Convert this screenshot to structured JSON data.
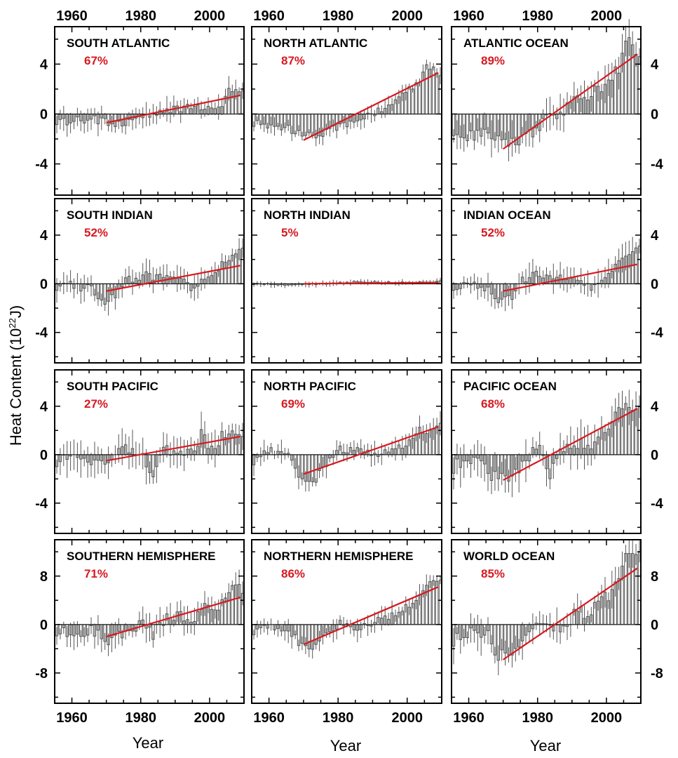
{
  "ylabel": "Heat Content (10",
  "ylabel_sup": "22",
  "ylabel_unit": "J)",
  "xlabel": "Year",
  "trend_color": "#d71920",
  "bar_color": "#555555",
  "x_ticks": [
    "1960",
    "1980",
    "2000"
  ],
  "chart_data": [
    {
      "type": "bar",
      "title": "SOUTH ATLANTIC",
      "percent": "67%",
      "row": 0,
      "col": 0,
      "ylim": [
        -6.5,
        7
      ],
      "yticks": [
        "4",
        "0",
        "-4"
      ],
      "ytick_values": [
        4,
        0,
        -4
      ],
      "xlim": [
        1955,
        2010
      ],
      "trend": {
        "x": [
          1970,
          2009
        ],
        "y": [
          -0.7,
          1.5
        ]
      },
      "anchors": [
        [
          1955,
          -0.5
        ],
        [
          1960,
          -0.6
        ],
        [
          1965,
          -0.4
        ],
        [
          1970,
          -0.8
        ],
        [
          1975,
          -0.6
        ],
        [
          1980,
          -0.3
        ],
        [
          1985,
          0.2
        ],
        [
          1990,
          0.5
        ],
        [
          1995,
          0.4
        ],
        [
          2000,
          0.7
        ],
        [
          2003,
          0.9
        ],
        [
          2005,
          2.2
        ],
        [
          2007,
          1.8
        ],
        [
          2009,
          1.9
        ]
      ],
      "noise": 0.35,
      "err": 0.8
    },
    {
      "type": "bar",
      "title": "NORTH ATLANTIC",
      "percent": "87%",
      "row": 0,
      "col": 1,
      "ylim": [
        -6.5,
        7
      ],
      "yticks": [
        "4",
        "0",
        "-4"
      ],
      "ytick_values": [
        4,
        0,
        -4
      ],
      "xlim": [
        1955,
        2010
      ],
      "trend": {
        "x": [
          1970,
          2009
        ],
        "y": [
          -2.1,
          3.3
        ]
      },
      "anchors": [
        [
          1955,
          -0.7
        ],
        [
          1960,
          -1.0
        ],
        [
          1965,
          -1.2
        ],
        [
          1970,
          -1.8
        ],
        [
          1975,
          -1.5
        ],
        [
          1980,
          -1.0
        ],
        [
          1985,
          -0.5
        ],
        [
          1990,
          0.0
        ],
        [
          1995,
          1.0
        ],
        [
          2000,
          2.0
        ],
        [
          2003,
          2.8
        ],
        [
          2005,
          4.0
        ],
        [
          2007,
          3.7
        ],
        [
          2009,
          3.2
        ]
      ],
      "noise": 0.3,
      "err": 0.6
    },
    {
      "type": "bar",
      "title": "ATLANTIC OCEAN",
      "percent": "89%",
      "row": 0,
      "col": 2,
      "ylim": [
        -6.5,
        7
      ],
      "yticks": [
        "4",
        "0",
        "-4"
      ],
      "ytick_values": [
        4,
        0,
        -4
      ],
      "xlim": [
        1955,
        2010
      ],
      "trend": {
        "x": [
          1970,
          2009
        ],
        "y": [
          -2.8,
          4.8
        ]
      },
      "anchors": [
        [
          1955,
          -1.2
        ],
        [
          1960,
          -1.8
        ],
        [
          1965,
          -1.5
        ],
        [
          1970,
          -2.5
        ],
        [
          1975,
          -2.2
        ],
        [
          1980,
          -1.0
        ],
        [
          1985,
          0.0
        ],
        [
          1990,
          1.0
        ],
        [
          1995,
          1.5
        ],
        [
          2000,
          2.8
        ],
        [
          2003,
          3.8
        ],
        [
          2005,
          5.8
        ],
        [
          2007,
          5.5
        ],
        [
          2009,
          5.0
        ]
      ],
      "noise": 0.55,
      "err": 1.2
    },
    {
      "type": "bar",
      "title": "SOUTH INDIAN",
      "percent": "52%",
      "row": 1,
      "col": 0,
      "ylim": [
        -6.5,
        7
      ],
      "yticks": [
        "4",
        "0",
        "-4"
      ],
      "ytick_values": [
        4,
        0,
        -4
      ],
      "xlim": [
        1955,
        2010
      ],
      "trend": {
        "x": [
          1970,
          2009
        ],
        "y": [
          -0.6,
          1.5
        ]
      },
      "anchors": [
        [
          1955,
          -0.2
        ],
        [
          1960,
          -0.1
        ],
        [
          1965,
          -0.5
        ],
        [
          1968,
          -1.5
        ],
        [
          1972,
          -1.0
        ],
        [
          1975,
          0.2
        ],
        [
          1980,
          0.7
        ],
        [
          1985,
          0.5
        ],
        [
          1990,
          0.5
        ],
        [
          1995,
          -0.5
        ],
        [
          2000,
          1.0
        ],
        [
          2005,
          1.8
        ],
        [
          2007,
          2.5
        ],
        [
          2009,
          2.6
        ]
      ],
      "noise": 0.35,
      "err": 0.9
    },
    {
      "type": "bar",
      "title": "NORTH INDIAN",
      "percent": "5%",
      "row": 1,
      "col": 1,
      "ylim": [
        -6.5,
        7
      ],
      "yticks": [
        "4",
        "0",
        "-4"
      ],
      "ytick_values": [
        4,
        0,
        -4
      ],
      "xlim": [
        1955,
        2010
      ],
      "trend": {
        "x": [
          1970,
          2009
        ],
        "y": [
          0.0,
          0.1
        ]
      },
      "anchors": [
        [
          1955,
          0.0
        ],
        [
          1965,
          -0.1
        ],
        [
          1975,
          0.0
        ],
        [
          1985,
          0.15
        ],
        [
          1995,
          0.1
        ],
        [
          2005,
          0.1
        ],
        [
          2009,
          0.2
        ]
      ],
      "noise": 0.07,
      "err": 0.2
    },
    {
      "type": "bar",
      "title": "INDIAN OCEAN",
      "percent": "52%",
      "row": 1,
      "col": 2,
      "ylim": [
        -6.5,
        7
      ],
      "yticks": [
        "4",
        "0",
        "-4"
      ],
      "ytick_values": [
        4,
        0,
        -4
      ],
      "xlim": [
        1955,
        2010
      ],
      "trend": {
        "x": [
          1970,
          2009
        ],
        "y": [
          -0.6,
          1.6
        ]
      },
      "anchors": [
        [
          1955,
          -0.2
        ],
        [
          1960,
          -0.1
        ],
        [
          1965,
          -0.6
        ],
        [
          1968,
          -1.6
        ],
        [
          1972,
          -1.0
        ],
        [
          1975,
          0.3
        ],
        [
          1980,
          0.8
        ],
        [
          1985,
          0.6
        ],
        [
          1990,
          0.5
        ],
        [
          1995,
          -0.4
        ],
        [
          2000,
          1.0
        ],
        [
          2005,
          2.0
        ],
        [
          2007,
          2.8
        ],
        [
          2009,
          3.0
        ]
      ],
      "noise": 0.35,
      "err": 1.0
    },
    {
      "type": "bar",
      "title": "SOUTH PACIFIC",
      "percent": "27%",
      "row": 2,
      "col": 0,
      "ylim": [
        -6.5,
        7
      ],
      "yticks": [
        "4",
        "0",
        "-4"
      ],
      "ytick_values": [
        4,
        0,
        -4
      ],
      "xlim": [
        1955,
        2010
      ],
      "trend": {
        "x": [
          1970,
          2009
        ],
        "y": [
          -0.5,
          1.5
        ]
      },
      "anchors": [
        [
          1955,
          -0.5
        ],
        [
          1960,
          -0.2
        ],
        [
          1965,
          -0.8
        ],
        [
          1970,
          -0.3
        ],
        [
          1975,
          0.5
        ],
        [
          1980,
          0.0
        ],
        [
          1983,
          -2.0
        ],
        [
          1985,
          0.3
        ],
        [
          1990,
          0.5
        ],
        [
          1995,
          0.2
        ],
        [
          1997,
          2.0
        ],
        [
          2000,
          0.3
        ],
        [
          2003,
          1.5
        ],
        [
          2005,
          2.2
        ],
        [
          2007,
          2.0
        ],
        [
          2009,
          1.5
        ]
      ],
      "noise": 0.5,
      "err": 1.2
    },
    {
      "type": "bar",
      "title": "NORTH PACIFIC",
      "percent": "69%",
      "row": 2,
      "col": 1,
      "ylim": [
        -6.5,
        7
      ],
      "yticks": [
        "4",
        "0",
        "-4"
      ],
      "ytick_values": [
        4,
        0,
        -4
      ],
      "xlim": [
        1955,
        2010
      ],
      "trend": {
        "x": [
          1970,
          2009
        ],
        "y": [
          -1.6,
          2.3
        ]
      },
      "anchors": [
        [
          1955,
          -0.5
        ],
        [
          1960,
          0.3
        ],
        [
          1965,
          -0.2
        ],
        [
          1968,
          -1.8
        ],
        [
          1972,
          -2.5
        ],
        [
          1975,
          -1.2
        ],
        [
          1980,
          0.4
        ],
        [
          1985,
          0.3
        ],
        [
          1990,
          0.0
        ],
        [
          1995,
          0.2
        ],
        [
          2000,
          1.2
        ],
        [
          2003,
          2.0
        ],
        [
          2005,
          2.0
        ],
        [
          2007,
          2.4
        ],
        [
          2009,
          2.7
        ]
      ],
      "noise": 0.35,
      "err": 0.8
    },
    {
      "type": "bar",
      "title": "PACIFIC OCEAN",
      "percent": "68%",
      "row": 2,
      "col": 2,
      "ylim": [
        -6.5,
        7
      ],
      "yticks": [
        "4",
        "0",
        "-4"
      ],
      "ytick_values": [
        4,
        0,
        -4
      ],
      "xlim": [
        1955,
        2010
      ],
      "trend": {
        "x": [
          1970,
          2009
        ],
        "y": [
          -2.1,
          3.8
        ]
      },
      "anchors": [
        [
          1955,
          -1.0
        ],
        [
          1960,
          -0.3
        ],
        [
          1965,
          -1.5
        ],
        [
          1970,
          -2.0
        ],
        [
          1975,
          -0.8
        ],
        [
          1980,
          1.0
        ],
        [
          1983,
          -1.5
        ],
        [
          1987,
          0.5
        ],
        [
          1990,
          1.0
        ],
        [
          1995,
          0.8
        ],
        [
          1997,
          2.0
        ],
        [
          2000,
          2.5
        ],
        [
          2003,
          3.5
        ],
        [
          2005,
          4.5
        ],
        [
          2007,
          4.2
        ],
        [
          2009,
          4.3
        ]
      ],
      "noise": 0.55,
      "err": 1.4
    },
    {
      "type": "bar",
      "title": "SOUTHERN HEMISPHERE",
      "percent": "71%",
      "row": 3,
      "col": 0,
      "ylim": [
        -13,
        14
      ],
      "yticks": [
        "8",
        "0",
        "-8"
      ],
      "ytick_values": [
        8,
        0,
        -8
      ],
      "xlim": [
        1955,
        2010
      ],
      "trend": {
        "x": [
          1970,
          2009
        ],
        "y": [
          -2.0,
          4.5
        ]
      },
      "anchors": [
        [
          1955,
          -1.0
        ],
        [
          1960,
          -1.5
        ],
        [
          1965,
          -1.0
        ],
        [
          1970,
          -2.5
        ],
        [
          1975,
          -1.5
        ],
        [
          1980,
          0.5
        ],
        [
          1983,
          -2.0
        ],
        [
          1985,
          0.5
        ],
        [
          1990,
          1.5
        ],
        [
          1995,
          0.5
        ],
        [
          1997,
          3.0
        ],
        [
          2000,
          2.0
        ],
        [
          2003,
          3.5
        ],
        [
          2005,
          5.5
        ],
        [
          2007,
          5.8
        ],
        [
          2009,
          6.0
        ]
      ],
      "noise": 0.9,
      "err": 2.0
    },
    {
      "type": "bar",
      "title": "NORTHERN HEMISPHERE",
      "percent": "86%",
      "row": 3,
      "col": 1,
      "ylim": [
        -13,
        14
      ],
      "yticks": [
        "8",
        "0",
        "-8"
      ],
      "ytick_values": [
        8,
        0,
        -8
      ],
      "xlim": [
        1955,
        2010
      ],
      "trend": {
        "x": [
          1970,
          2009
        ],
        "y": [
          -3.3,
          6.2
        ]
      },
      "anchors": [
        [
          1955,
          -1.0
        ],
        [
          1960,
          0.0
        ],
        [
          1965,
          -1.0
        ],
        [
          1968,
          -3.0
        ],
        [
          1972,
          -3.5
        ],
        [
          1975,
          -2.0
        ],
        [
          1980,
          0.0
        ],
        [
          1985,
          -0.5
        ],
        [
          1990,
          0.5
        ],
        [
          1995,
          1.5
        ],
        [
          2000,
          3.0
        ],
        [
          2003,
          4.5
        ],
        [
          2005,
          6.5
        ],
        [
          2007,
          6.8
        ],
        [
          2009,
          6.8
        ]
      ],
      "noise": 0.7,
      "err": 1.6
    },
    {
      "type": "bar",
      "title": "WORLD OCEAN",
      "percent": "85%",
      "row": 3,
      "col": 2,
      "ylim": [
        -13,
        14
      ],
      "yticks": [
        "8",
        "0",
        "-8"
      ],
      "ytick_values": [
        8,
        0,
        -8
      ],
      "xlim": [
        1955,
        2010
      ],
      "trend": {
        "x": [
          1970,
          2009
        ],
        "y": [
          -5.8,
          9.3
        ]
      },
      "anchors": [
        [
          1955,
          -2.5
        ],
        [
          1960,
          -1.0
        ],
        [
          1965,
          -2.0
        ],
        [
          1968,
          -5.0
        ],
        [
          1972,
          -5.0
        ],
        [
          1975,
          -3.0
        ],
        [
          1980,
          0.5
        ],
        [
          1985,
          -1.0
        ],
        [
          1990,
          1.5
        ],
        [
          1995,
          2.5
        ],
        [
          2000,
          5.0
        ],
        [
          2003,
          7.0
        ],
        [
          2005,
          11.5
        ],
        [
          2007,
          11.2
        ],
        [
          2009,
          11.6
        ]
      ],
      "noise": 1.1,
      "err": 2.5
    }
  ]
}
